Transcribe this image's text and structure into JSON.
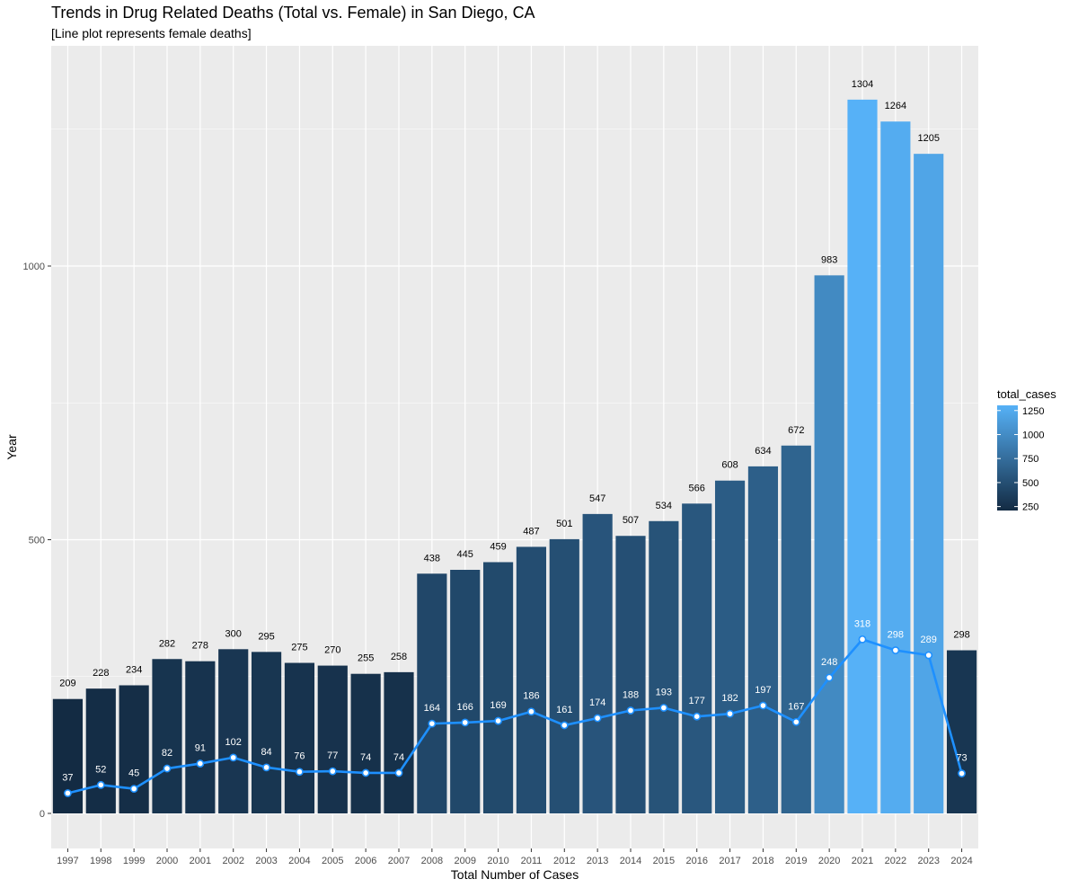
{
  "chart_data": {
    "type": "bar",
    "title": "Trends in Drug Related Deaths (Total vs. Female) in San Diego, CA",
    "subtitle": "[Line plot represents female deaths]",
    "xlabel": "Total Number of Cases",
    "ylabel": "Year",
    "ylim": [
      -60,
      1400
    ],
    "yticks": [
      0,
      500,
      1000
    ],
    "grid": true,
    "legend_position": "right",
    "categories": [
      "1997",
      "1998",
      "1999",
      "2000",
      "2001",
      "2002",
      "2003",
      "2004",
      "2005",
      "2006",
      "2007",
      "2008",
      "2009",
      "2010",
      "2011",
      "2012",
      "2013",
      "2014",
      "2015",
      "2016",
      "2017",
      "2018",
      "2019",
      "2020",
      "2021",
      "2022",
      "2023",
      "2024"
    ],
    "series": [
      {
        "type": "bar",
        "values": [
          209,
          228,
          234,
          282,
          278,
          300,
          295,
          275,
          270,
          255,
          258,
          438,
          445,
          459,
          487,
          501,
          547,
          507,
          534,
          566,
          608,
          634,
          672,
          983,
          1304,
          1264,
          1205,
          298
        ]
      },
      {
        "type": "line",
        "values": [
          37,
          52,
          45,
          82,
          91,
          102,
          84,
          76,
          77,
          74,
          74,
          164,
          166,
          169,
          186,
          161,
          174,
          188,
          193,
          177,
          182,
          197,
          167,
          248,
          318,
          298,
          289,
          73
        ]
      }
    ],
    "legend": {
      "title": "total_cases",
      "ticks": [
        1250,
        1000,
        750,
        500,
        250
      ],
      "range": [
        209,
        1304
      ]
    },
    "colors": {
      "bar_low": "#132B43",
      "bar_high": "#56B1F7",
      "line": "#1E90FF",
      "panel": "#EBEBEB",
      "grid": "#FFFFFF"
    }
  }
}
